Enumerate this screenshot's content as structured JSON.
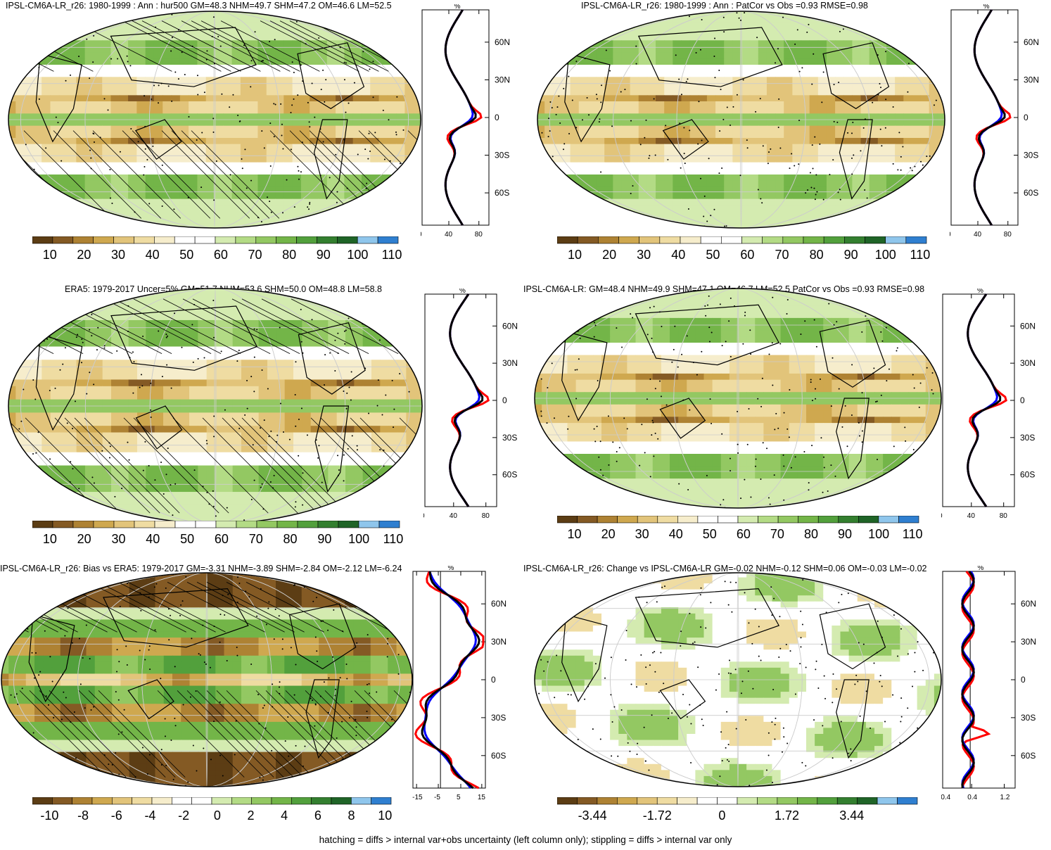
{
  "footnote": "hatching = diffs > internal var+obs uncertainty (left column only); stippling = diffs > internal var only",
  "colors": {
    "brown_dark": "#6b4a1f",
    "brown": "#a87e3a",
    "tan": "#d9bd7a",
    "cream": "#f3e8b8",
    "white": "#ffffff",
    "light_green": "#c8e6a0",
    "green": "#8cc861",
    "dark_green": "#3f8f3a",
    "blue": "#3a86d6",
    "profile_red": "#ff0000",
    "profile_blue": "#0000ff",
    "profile_black": "#000000"
  },
  "chart_data": [
    {
      "type": "heatmap",
      "title": "IPSL-CM6A-LR_r26: 1980-1999 : Ann : hur500 GM=48.3 NHM=49.7 SHM=47.2 OM=46.6 LM=52.5",
      "colorbar_ticks": [
        "10",
        "20",
        "30",
        "40",
        "50",
        "60",
        "70",
        "80",
        "90",
        "100",
        "110"
      ],
      "profile_unit": "%",
      "profile_xticks": [
        "0",
        "40",
        "80"
      ],
      "profile_yticks": [
        "60N",
        "30N",
        "0",
        "30S",
        "60S"
      ]
    },
    {
      "type": "heatmap",
      "title": "IPSL-CM6A-LR_r26: 1980-1999 : Ann : PatCor vs Obs =0.93 RMSE=0.98",
      "colorbar_ticks": [
        "10",
        "20",
        "30",
        "40",
        "50",
        "60",
        "70",
        "80",
        "90",
        "100",
        "110"
      ],
      "profile_unit": "%",
      "profile_xticks": [
        "0",
        "40",
        "80"
      ],
      "profile_yticks": [
        "60N",
        "30N",
        "0",
        "30S",
        "60S"
      ]
    },
    {
      "type": "heatmap",
      "title": "ERA5: 1979-2017 Uncer=5% GM=51.7 NHM=53.6 SHM=50.0 OM=48.8 LM=58.8",
      "colorbar_ticks": [
        "10",
        "20",
        "30",
        "40",
        "50",
        "60",
        "70",
        "80",
        "90",
        "100",
        "110"
      ],
      "profile_unit": "%",
      "profile_xticks": [
        "0",
        "40",
        "80"
      ],
      "profile_yticks": [
        "60N",
        "30N",
        "0",
        "30S",
        "60S"
      ]
    },
    {
      "type": "heatmap",
      "title": "IPSL-CM6A-LR: GM=48.4 NHM=49.9 SHM=47.1 OM=46.7 LM=52.5 PatCor vs Obs =0.93 RMSE=0.98",
      "colorbar_ticks": [
        "10",
        "20",
        "30",
        "40",
        "50",
        "60",
        "70",
        "80",
        "90",
        "100",
        "110"
      ],
      "profile_unit": "%",
      "profile_xticks": [
        "0",
        "40",
        "80"
      ],
      "profile_yticks": [
        "60N",
        "30N",
        "0",
        "30S",
        "60S"
      ]
    },
    {
      "type": "heatmap",
      "title": "IPSL-CM6A-LR_r26: Bias vs ERA5: 1979-2017 GM=-3.31 NHM=-3.89 SHM=-2.84 OM=-2.12 LM=-6.24",
      "colorbar_ticks": [
        "-10",
        "-8",
        "-6",
        "-4",
        "-2",
        "0",
        "2",
        "4",
        "6",
        "8",
        "10"
      ],
      "profile_unit": "%",
      "profile_xticks": [
        "-15",
        "-5",
        "5",
        "15"
      ],
      "profile_yticks": [
        "60N",
        "30N",
        "0",
        "30S",
        "60S"
      ]
    },
    {
      "type": "heatmap",
      "title": "IPSL-CM6A-LR_r26: Change vs IPSL-CM6A-LR GM=-0.02 NHM=-0.12 SHM=0.06 OM=-0.03 LM=-0.02",
      "colorbar_ticks": [
        "-3.44",
        "-1.72",
        "0",
        "1.72",
        "3.44"
      ],
      "profile_unit": "%",
      "profile_xticks": [
        "-0.4",
        "0.4",
        "1.2"
      ],
      "profile_yticks": [
        "60N",
        "30N",
        "0",
        "30S",
        "60S"
      ]
    }
  ]
}
